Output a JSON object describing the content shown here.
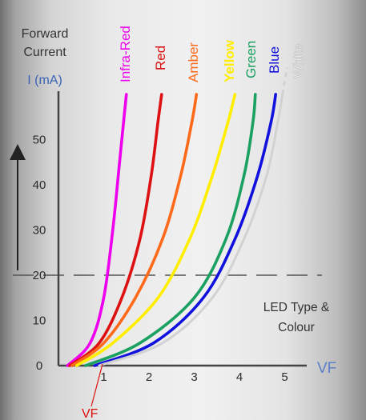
{
  "chart_data": {
    "type": "line",
    "ylabel_lines": [
      "Forward",
      "Current"
    ],
    "yunit": "I (mA)",
    "xlabel": "VF",
    "vf_marker_label": "VF",
    "legend_title_lines": [
      "LED Type &",
      "Colour"
    ],
    "xlim": [
      0,
      5.5
    ],
    "ylim": [
      0,
      60
    ],
    "x_ticks": [
      1,
      2,
      3,
      4,
      5
    ],
    "y_ticks": [
      0,
      10,
      20,
      30,
      40,
      50
    ],
    "reference_line": {
      "y": 20,
      "style": "dashed"
    },
    "series": [
      {
        "name": "Infra-Red",
        "color": "#ee00ee",
        "x": [
          0.2,
          0.7,
          1.0,
          1.2,
          1.35,
          1.45,
          1.5
        ],
        "y": [
          0,
          5,
          15,
          30,
          45,
          55,
          60
        ]
      },
      {
        "name": "Red",
        "color": "#dd1111",
        "x": [
          0.25,
          0.9,
          1.4,
          1.8,
          2.05,
          2.2,
          2.28
        ],
        "y": [
          0,
          5,
          15,
          28,
          42,
          54,
          60
        ]
      },
      {
        "name": "Amber",
        "color": "#ff6a1a",
        "x": [
          0.3,
          1.0,
          1.7,
          2.3,
          2.7,
          2.95,
          3.05
        ],
        "y": [
          0,
          5,
          15,
          28,
          42,
          54,
          60
        ]
      },
      {
        "name": "Yellow",
        "color": "#ffee00",
        "x": [
          0.4,
          1.2,
          2.2,
          2.9,
          3.4,
          3.75,
          3.9
        ],
        "y": [
          0,
          5,
          15,
          28,
          42,
          54,
          60
        ]
      },
      {
        "name": "Green",
        "color": "#1aa060",
        "x": [
          0.6,
          1.8,
          3.0,
          3.7,
          4.1,
          4.3,
          4.35
        ],
        "y": [
          0,
          5,
          15,
          28,
          42,
          54,
          60
        ]
      },
      {
        "name": "Blue",
        "color": "#1111dd",
        "x": [
          0.8,
          2.1,
          3.2,
          3.9,
          4.4,
          4.7,
          4.8
        ],
        "y": [
          0,
          5,
          15,
          28,
          42,
          54,
          60
        ]
      },
      {
        "name": "White",
        "color": "#d2d2d2",
        "x": [
          0.9,
          2.3,
          3.4,
          4.1,
          4.6,
          4.85,
          4.95
        ],
        "y": [
          0,
          5,
          15,
          28,
          42,
          54,
          60
        ]
      }
    ]
  }
}
